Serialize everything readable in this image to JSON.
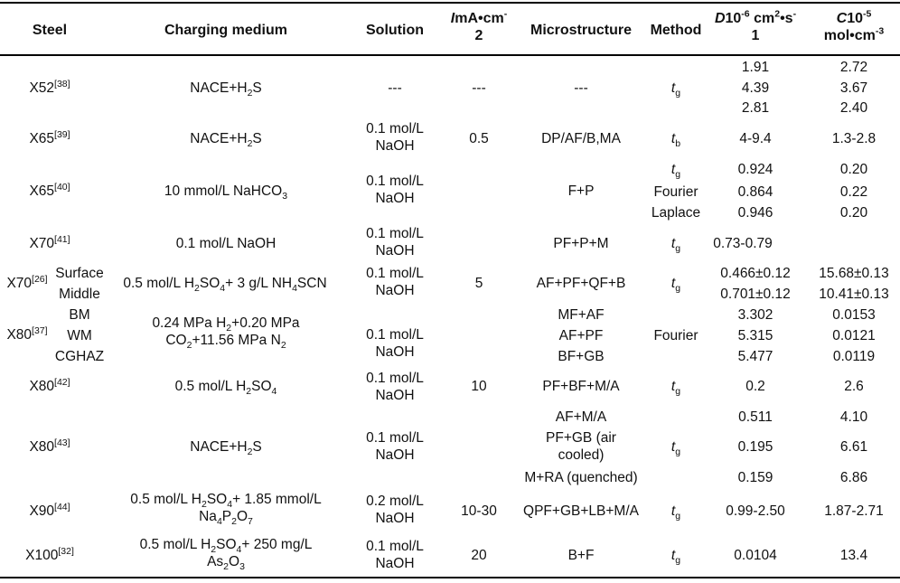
{
  "header": {
    "steel": "Steel",
    "charging_medium": "Charging medium",
    "solution": "Solution",
    "current_density": "I mA·cm⁻²",
    "microstructure": "Microstructure",
    "method": "Method",
    "diffusivity": "D 10⁻⁶ cm²·s⁻¹",
    "concentration": "C 10⁻⁵ mol·cm⁻³"
  },
  "rows": [
    {
      "steel": "X52[38]",
      "medium": "NACE+H₂S",
      "solution": "---",
      "current": "---",
      "micro": "---",
      "method": "tg",
      "D": [
        "1.91",
        "4.39",
        "2.81"
      ],
      "C": [
        "2.72",
        "3.67",
        "2.40"
      ]
    },
    {
      "steel": "X65[39]",
      "medium": "NACE+H₂S",
      "solution": "0.1 mol/L NaOH",
      "current": "0.5",
      "micro": "DP/AF/B,MA",
      "method": "tb",
      "D": "4-9.4",
      "C": "1.3-2.8"
    },
    {
      "steel": "X65[40]",
      "medium": "10 mmol/L NaHCO₃",
      "solution": "0.1 mol/L NaOH",
      "current": "",
      "micro": "F+P",
      "method": [
        "tg",
        "Fourier",
        "Laplace"
      ],
      "D": [
        "0.924",
        "0.864",
        "0.946"
      ],
      "C": [
        "0.20",
        "0.22",
        "0.20"
      ]
    },
    {
      "steel": "X70[41]",
      "medium": "0.1 mol/L NaOH",
      "solution": "0.1 mol/L NaOH",
      "current": "",
      "micro": "PF+P+M",
      "method": "tg",
      "D": "0.73-0.79",
      "C": ""
    },
    {
      "steel": "X70[26]",
      "sub": [
        "Surface",
        "Middle"
      ],
      "medium": "0.5 mol/L H₂SO₄+ 3 g/L NH₄SCN",
      "solution": "0.1 mol/L NaOH",
      "current": "5",
      "micro": "AF+PF+QF+B",
      "method": "tg",
      "D": [
        "0.466±0.12",
        "0.701±0.12"
      ],
      "C": [
        "15.68±0.13",
        "10.41±0.13"
      ]
    },
    {
      "steel": "X80[37]",
      "sub": [
        "BM",
        "WM",
        "CGHAZ"
      ],
      "medium": "0.24 MPa H₂+0.20 MPa CO₂+11.56 MPa N₂",
      "solution": "0.1 mol/L NaOH",
      "current": "",
      "micro": [
        "MF+AF",
        "AF+PF",
        "BF+GB"
      ],
      "method": "Fourier",
      "D": [
        "3.302",
        "5.315",
        "5.477"
      ],
      "C": [
        "0.0153",
        "0.0121",
        "0.0119"
      ]
    },
    {
      "steel": "X80[42]",
      "medium": "0.5 mol/L H₂SO₄",
      "solution": "0.1 mol/L NaOH",
      "current": "10",
      "micro": "PF+BF+M/A",
      "method": "tg",
      "D": "0.2",
      "C": "2.6"
    },
    {
      "steel": "X80[43]",
      "medium": "NACE+H₂S",
      "solution": "0.1 mol/L NaOH",
      "current": "",
      "micro": [
        "AF+M/A",
        "PF+GB (air cooled)",
        "M+RA (quenched)"
      ],
      "method": "tg",
      "D": [
        "0.511",
        "0.195",
        "0.159"
      ],
      "C": [
        "4.10",
        "6.61",
        "6.86"
      ]
    },
    {
      "steel": "X90[44]",
      "medium": "0.5 mol/L H₂SO₄+ 1.85 mmol/L Na₄P₂O₇",
      "solution": "0.2 mol/L NaOH",
      "current": "10-30",
      "micro": "QPF+GB+LB+M/A",
      "method": "tg",
      "D": "0.99-2.50",
      "C": "1.87-2.71"
    },
    {
      "steel": "X100[32]",
      "medium": "0.5 mol/L H₂SO₄+ 250 mg/L As₂O₃",
      "solution": "0.1 mol/L NaOH",
      "current": "20",
      "micro": "B+F",
      "method": "tg",
      "D": "0.0104",
      "C": "13.4"
    }
  ]
}
